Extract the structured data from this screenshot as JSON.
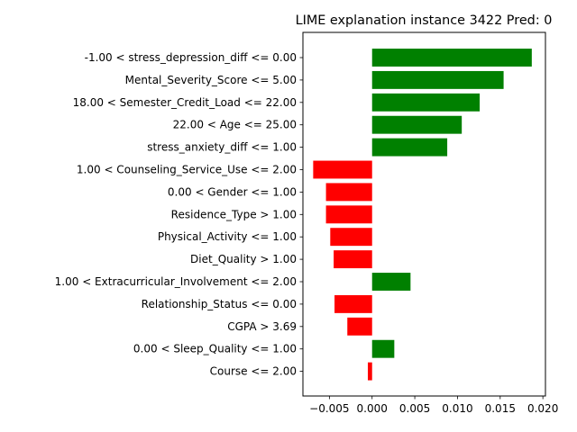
{
  "chart_data": {
    "type": "bar",
    "orientation": "horizontal",
    "title": "LIME explanation instance 3422 Pred: 0",
    "xlabel": "",
    "ylabel": "",
    "xlim": [
      -0.0081,
      0.0203
    ],
    "xticks": [
      -0.005,
      0.0,
      0.005,
      0.01,
      0.015,
      0.02
    ],
    "xtick_labels": [
      "−0.005",
      "0.000",
      "0.005",
      "0.010",
      "0.015",
      "0.020"
    ],
    "grid": false,
    "positive_color": "#008000",
    "negative_color": "#ff0000",
    "categories": [
      "-1.00 < stress_depression_diff <= 0.00",
      "Mental_Severity_Score <= 5.00",
      "18.00 < Semester_Credit_Load <= 22.00",
      "22.00 < Age <= 25.00",
      "stress_anxiety_diff <= 1.00",
      "1.00 < Counseling_Service_Use <= 2.00",
      "0.00 < Gender <= 1.00",
      "Residence_Type > 1.00",
      "Physical_Activity <= 1.00",
      "Diet_Quality > 1.00",
      "1.00 < Extracurricular_Involvement <= 2.00",
      "Relationship_Status <= 0.00",
      "CGPA > 3.69",
      "0.00 < Sleep_Quality <= 1.00",
      "Course <= 2.00"
    ],
    "values": [
      0.0187,
      0.0154,
      0.0126,
      0.0105,
      0.0088,
      -0.0069,
      -0.0054,
      -0.0054,
      -0.0049,
      -0.0045,
      0.0045,
      -0.0044,
      -0.0029,
      0.0026,
      -0.0005
    ]
  }
}
